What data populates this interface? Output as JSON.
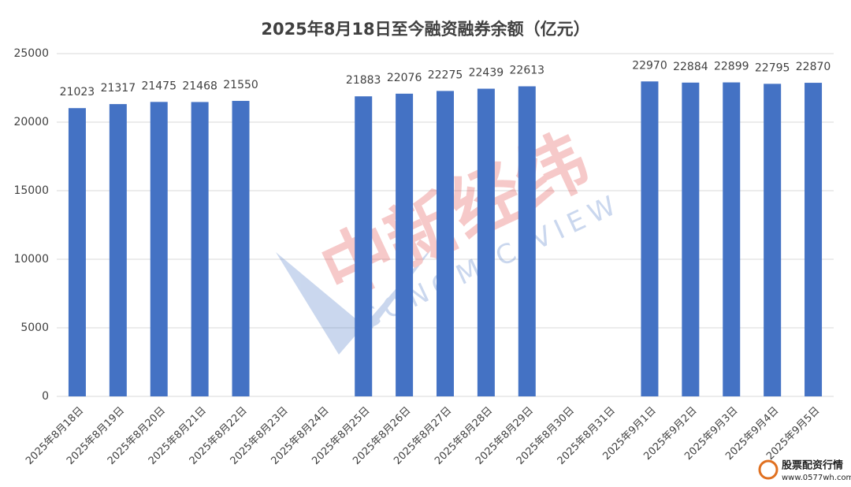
{
  "chart_data": {
    "type": "bar",
    "title": "2025年8月18日至今融资融券余额（亿元）",
    "categories": [
      "2025年8月18日",
      "2025年8月19日",
      "2025年8月20日",
      "2025年8月21日",
      "2025年8月22日",
      "2025年8月23日",
      "2025年8月24日",
      "2025年8月25日",
      "2025年8月26日",
      "2025年8月27日",
      "2025年8月28日",
      "2025年8月29日",
      "2025年8月30日",
      "2025年8月31日",
      "2025年9月1日",
      "2025年9月2日",
      "2025年9月3日",
      "2025年9月4日",
      "2025年9月5日"
    ],
    "values": [
      21023,
      21317,
      21475,
      21468,
      21550,
      null,
      null,
      21883,
      22076,
      22275,
      22439,
      22613,
      null,
      null,
      22970,
      22884,
      22899,
      22795,
      22870
    ],
    "color": "#4472c4",
    "ylim": [
      0,
      25000
    ],
    "yticks": [
      0,
      5000,
      10000,
      15000,
      20000,
      25000
    ],
    "grid": true,
    "watermark": [
      "中新经纬",
      "ECONOMIC VIEW"
    ],
    "logo": [
      "股票配资行情",
      "www.0577wh.com"
    ]
  }
}
